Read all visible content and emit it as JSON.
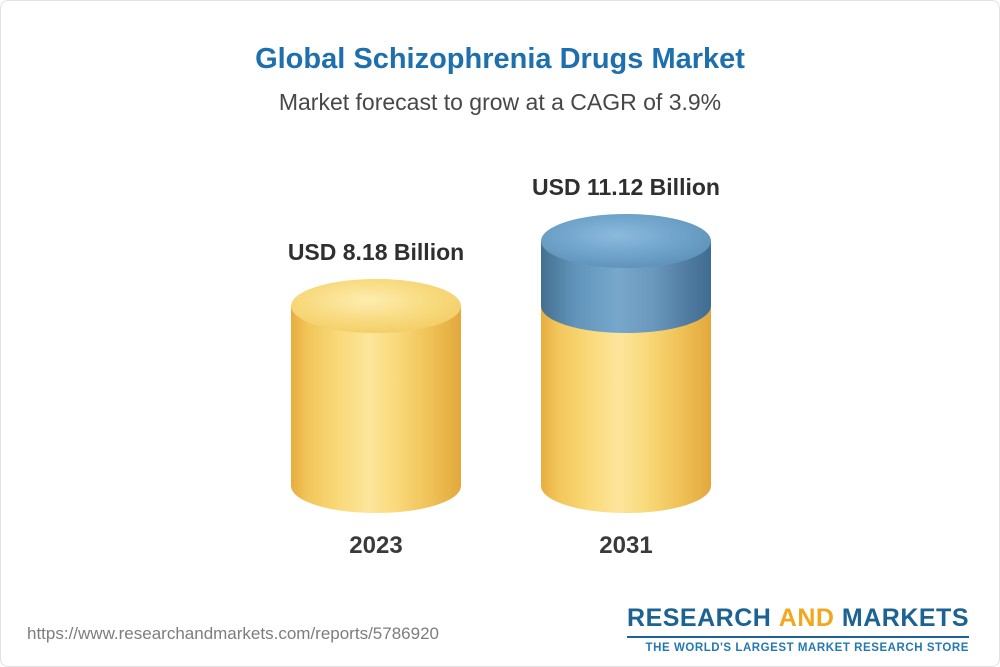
{
  "page": {
    "title": "Global Schizophrenia Drugs Market",
    "subtitle": "Market forecast to grow at a CAGR of 3.9%"
  },
  "chart_data": {
    "type": "bar",
    "title": "Global Schizophrenia Drugs Market",
    "subtitle": "Market forecast to grow at a CAGR of 3.9%",
    "categories": [
      "2023",
      "2031"
    ],
    "values": [
      8.18,
      11.12
    ],
    "unit": "USD Billion",
    "value_labels": [
      "USD 8.18 Billion",
      "USD 11.12 Billion"
    ],
    "cagr": "3.9%",
    "grid": false,
    "legend": "none",
    "colors": {
      "base_bar": "#f6cd67",
      "growth_segment": "#6194bb"
    }
  },
  "footer": {
    "url": "https://www.researchandmarkets.com/reports/5786920",
    "logo": {
      "research": "RESEARCH",
      "and": "AND",
      "markets": "MARKETS",
      "tagline": "THE WORLD'S LARGEST MARKET RESEARCH STORE"
    }
  }
}
